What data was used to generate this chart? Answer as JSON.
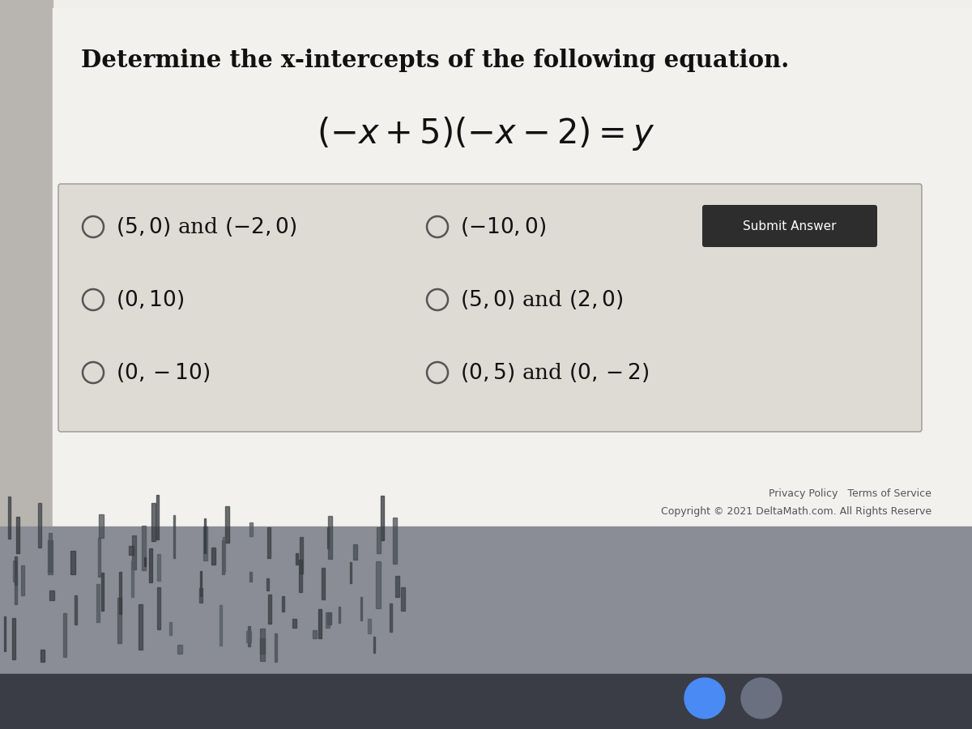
{
  "page_bg": "#c8c5c0",
  "white_bg": "#f0efec",
  "card_bg": "#dedad4",
  "card_border": "#b0aca6",
  "title": "Determine the x-intercepts of the following equation.",
  "options_left_math": [
    "$(5,0)$ and $(-2,0)$",
    "$(0,10)$",
    "$(0,-10)$"
  ],
  "options_right_math": [
    "$(-10,0)$",
    "$(5,0)$ and $(2,0)$",
    "$(0,5)$ and $(0,-2)$"
  ],
  "submit_btn_color": "#2d2d2d",
  "submit_btn_text": "Submit Answer",
  "footer_text1": "Privacy Policy   Terms of Service",
  "footer_text2": "Copyright © 2021 DeltaMath.com. All Rights Reserve",
  "title_fontsize": 21,
  "equation_fontsize": 30,
  "option_fontsize": 19,
  "taskbar_color": "#4a5060",
  "bottom_bar_color": "#111111"
}
